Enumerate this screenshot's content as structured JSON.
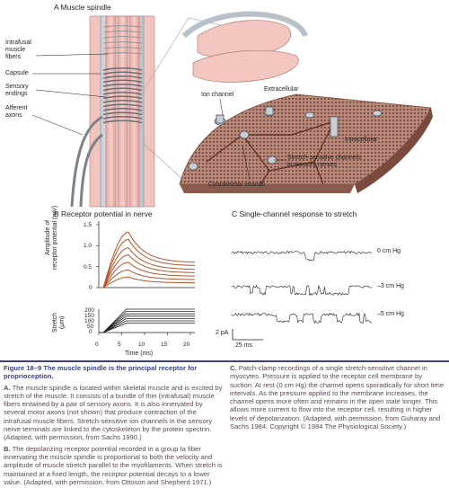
{
  "panel_a": {
    "title": "A  Muscle spindle",
    "labels": {
      "intrafusal": "Intrafusal\nmuscle\nfibers",
      "capsule": "Capsule",
      "sensory": "Sensory\nendings",
      "afferent": "Afferent\naxons",
      "ion_channel": "Ion channel",
      "extracellular": "Extracellular",
      "intracellular": "Intracellular",
      "stretch_channels": "Stretch-sensitive channels\nin sensory nerves",
      "cytoskeletal": "Cytoskeletal strands"
    }
  },
  "panel_b": {
    "title": "B  Receptor potential in nerve",
    "ylabel": "Amplitude of\nreceptor potential (mV)",
    "stretch_label": "Stretch\n(μm)",
    "xlabel": "Time (ms)",
    "yticks": [
      "1.5",
      "1.0",
      "0.5",
      "0"
    ],
    "stretch_ticks": [
      "200",
      "150",
      "100",
      "50",
      "0"
    ],
    "xticks": [
      "0",
      "5",
      "10",
      "15",
      "20"
    ]
  },
  "panel_c": {
    "title": "C  Single-channel response to stretch",
    "traces": [
      "0 cm Hg",
      "–3 cm Hg",
      "–5 cm Hg"
    ],
    "scale_y": "2 pA",
    "scale_x": "25 ms"
  },
  "chart_data": {
    "type": "line",
    "title": "B  Receptor potential in nerve",
    "xlabel": "Time (ms)",
    "ylabel": "Amplitude of receptor potential (mV)",
    "xlim": [
      0,
      21
    ],
    "ylim": [
      0,
      1.5
    ],
    "x": [
      0,
      1,
      2,
      3,
      4,
      5,
      6,
      7,
      8,
      10,
      12,
      14,
      16,
      18,
      20,
      21
    ],
    "peaks": [
      1.32,
      1.15,
      0.95,
      0.78,
      0.6,
      0.42,
      0.25
    ],
    "stretch_levels_um": [
      200,
      180,
      160,
      140,
      120,
      100,
      80
    ]
  },
  "caption": {
    "title": "Figure 18–9  The muscle spindle is the principal receptor for proprioception.",
    "a_label": "A.",
    "a_text": " The muscle spindle is located within skeletal muscle and is excited by stretch of the muscle. It consists of a bundle of thin (intrafusal) muscle fibers entwined by a pair of sensory axons. It is also innervated by several motor axons (not shown) that produce contraction of the intrafusal muscle fibers. Stretch-sensitive ion channels in the sensory nerve terminals are linked to the cytoskeleton by the protein spectrin. (Adapted, with permission, from Sachs 1990.)",
    "b_label": "B.",
    "b_text": " The depolarizing receptor potential recorded in a group Ia fiber innervating the muscle spindle is proportional to both the velocity and amplitude of muscle stretch parallel to the myofilaments. When stretch is maintained at a fixed length, the receptor potential decays to a lower value. (Adapted, with permission, from Ottoson and Shepherd 1971.)",
    "c_label": "C.",
    "c_text": " Patch-clamp recordings of a single stretch-sensitive channel in myocytes. Pressure is applied to the receptor cell membrane by suction. At rest (0 cm Hg) the channel opens sporadically for short time intervals. As the pressure applied to the membrane increases, the channel opens more often and remains in the open state longer. This allows more current to flow into the receptor cell, resulting in higher levels of depolarization. (Adapted, with permission, from Guharay and Sachs 1984. Copyright © 1984 The Physiological Society.)"
  }
}
